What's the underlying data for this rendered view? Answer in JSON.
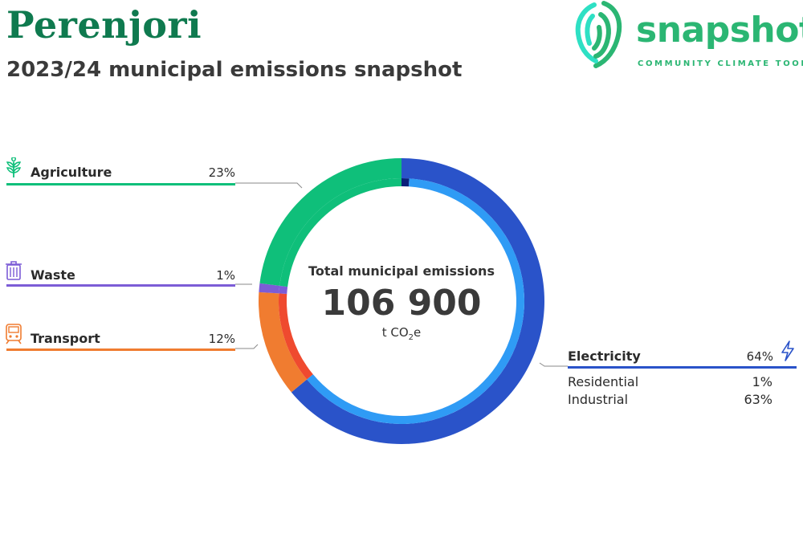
{
  "header": {
    "title": "Perenjori",
    "subtitle": "2023/24 municipal emissions snapshot"
  },
  "logo": {
    "wordmark": "snapshot",
    "tagline": "COMMUNITY CLIMATE TOOL",
    "color": "#2bb673"
  },
  "center": {
    "label": "Total municipal emissions",
    "value": "106 900",
    "unit_prefix": "t CO",
    "unit_sub": "2",
    "unit_suffix": "e"
  },
  "categories": {
    "agriculture": {
      "name": "Agriculture",
      "pct_label": "23%",
      "color": "#0fbf7a",
      "icon": "sprout-icon"
    },
    "waste": {
      "name": "Waste",
      "pct_label": "1%",
      "color": "#7c5cd6",
      "icon": "trash-bin-icon"
    },
    "transport": {
      "name": "Transport",
      "pct_label": "12%",
      "color": "#f07c30",
      "icon": "train-icon"
    },
    "electricity": {
      "name": "Electricity",
      "pct_label": "64%",
      "color": "#2a53c9",
      "icon": "lightning-icon",
      "breakdown": [
        {
          "name": "Residential",
          "pct_label": "1%"
        },
        {
          "name": "Industrial",
          "pct_label": "63%"
        }
      ]
    }
  },
  "chart_data": {
    "type": "pie",
    "title": "Total municipal emissions",
    "total": 106900,
    "unit": "t CO2e",
    "outer_ring": [
      {
        "name": "Electricity",
        "value": 64,
        "color": "#2a53c9"
      },
      {
        "name": "Transport",
        "value": 12,
        "color": "#f07c30"
      },
      {
        "name": "Waste",
        "value": 1,
        "color": "#7c5cd6"
      },
      {
        "name": "Agriculture",
        "value": 23,
        "color": "#0fbf7a"
      }
    ],
    "inner_ring": [
      {
        "name": "Residential",
        "value": 1,
        "color": "#0a1f7a"
      },
      {
        "name": "Industrial",
        "value": 63,
        "color": "#2f9bf5"
      },
      {
        "name": "Transport",
        "value": 12,
        "color": "#ef4a2f"
      },
      {
        "name": "Waste",
        "value": 1,
        "color": "#7c5cd6"
      },
      {
        "name": "Agriculture",
        "value": 23,
        "color": "#0fbf7a"
      }
    ]
  }
}
